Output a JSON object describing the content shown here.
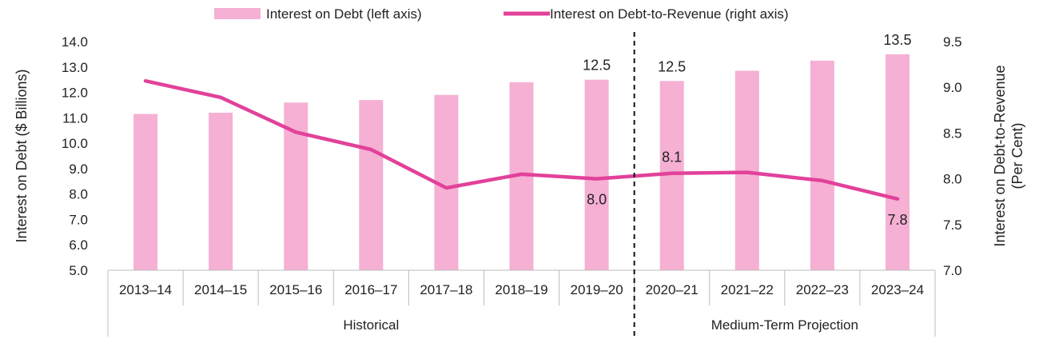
{
  "chart_data": {
    "type": "bar",
    "categories": [
      "2013–14",
      "2014–15",
      "2015–16",
      "2016–17",
      "2017–18",
      "2018–19",
      "2019–20",
      "2020–21",
      "2021–22",
      "2022–23",
      "2023–24"
    ],
    "groups": [
      {
        "label": "Historical",
        "from": 0,
        "to": 6
      },
      {
        "label": "Medium-Term Projection",
        "from": 7,
        "to": 10
      }
    ],
    "series": [
      {
        "name": "Interest on Debt (left axis)",
        "type": "bar",
        "axis": "left",
        "color": "#f5b0d3",
        "values": [
          11.15,
          11.2,
          11.6,
          11.7,
          11.9,
          12.4,
          12.5,
          12.45,
          12.85,
          13.25,
          13.5
        ]
      },
      {
        "name": "Interest on Debt-to-Revenue (right axis)",
        "type": "line",
        "axis": "right",
        "color": "#e2419a",
        "values": [
          9.07,
          8.89,
          8.51,
          8.32,
          7.9,
          8.05,
          8.0,
          8.06,
          8.07,
          7.98,
          7.78
        ]
      }
    ],
    "data_labels": [
      {
        "series": 0,
        "index": 6,
        "text": "12.5",
        "pos": "above"
      },
      {
        "series": 0,
        "index": 7,
        "text": "12.5",
        "pos": "above"
      },
      {
        "series": 0,
        "index": 10,
        "text": "13.5",
        "pos": "above"
      },
      {
        "series": 1,
        "index": 6,
        "text": "8.0",
        "pos": "below"
      },
      {
        "series": 1,
        "index": 7,
        "text": "8.1",
        "pos": "above"
      },
      {
        "series": 1,
        "index": 10,
        "text": "7.8",
        "pos": "below"
      }
    ],
    "left_axis": {
      "label": "Interest on Debt ($ Billions)",
      "min": 5.0,
      "max": 14.0,
      "step": 1.0,
      "ticks": [
        "5.0",
        "6.0",
        "7.0",
        "8.0",
        "9.0",
        "10.0",
        "11.0",
        "12.0",
        "13.0",
        "14.0"
      ]
    },
    "right_axis": {
      "label_lines": [
        "Interest on Debt-to-Revenue",
        "(Per Cent)"
      ],
      "min": 7.0,
      "max": 9.5,
      "step": 0.5,
      "ticks": [
        "7.0",
        "7.5",
        "8.0",
        "8.5",
        "9.0",
        "9.5"
      ]
    },
    "divider_after_index": 6,
    "grid": false,
    "legend_position": "top"
  }
}
